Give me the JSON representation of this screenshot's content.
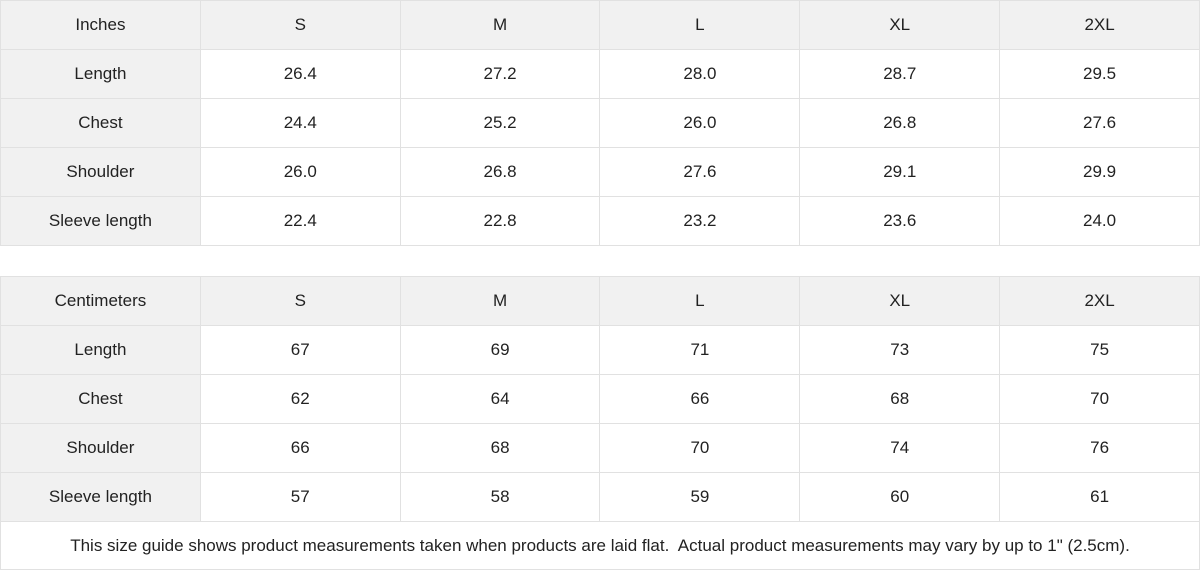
{
  "inches_table": {
    "unit_label": "Inches",
    "sizes": [
      "S",
      "M",
      "L",
      "XL",
      "2XL"
    ],
    "rows": [
      {
        "label": "Length",
        "values": [
          "26.4",
          "27.2",
          "28.0",
          "28.7",
          "29.5"
        ]
      },
      {
        "label": "Chest",
        "values": [
          "24.4",
          "25.2",
          "26.0",
          "26.8",
          "27.6"
        ]
      },
      {
        "label": "Shoulder",
        "values": [
          "26.0",
          "26.8",
          "27.6",
          "29.1",
          "29.9"
        ]
      },
      {
        "label": "Sleeve length",
        "values": [
          "22.4",
          "22.8",
          "23.2",
          "23.6",
          "24.0"
        ]
      }
    ]
  },
  "centimeters_table": {
    "unit_label": "Centimeters",
    "sizes": [
      "S",
      "M",
      "L",
      "XL",
      "2XL"
    ],
    "rows": [
      {
        "label": "Length",
        "values": [
          "67",
          "69",
          "71",
          "73",
          "75"
        ]
      },
      {
        "label": "Chest",
        "values": [
          "62",
          "64",
          "66",
          "68",
          "70"
        ]
      },
      {
        "label": "Shoulder",
        "values": [
          "66",
          "68",
          "70",
          "74",
          "76"
        ]
      },
      {
        "label": "Sleeve length",
        "values": [
          "57",
          "58",
          "59",
          "60",
          "61"
        ]
      }
    ]
  },
  "footer": {
    "note": "This size guide shows product measurements taken when products are laid flat.  Actual product measurements may vary by up to 1\" (2.5cm)."
  },
  "colors": {
    "header_background": "#f1f1f1",
    "border": "#e1e1e1",
    "text": "#222222"
  }
}
